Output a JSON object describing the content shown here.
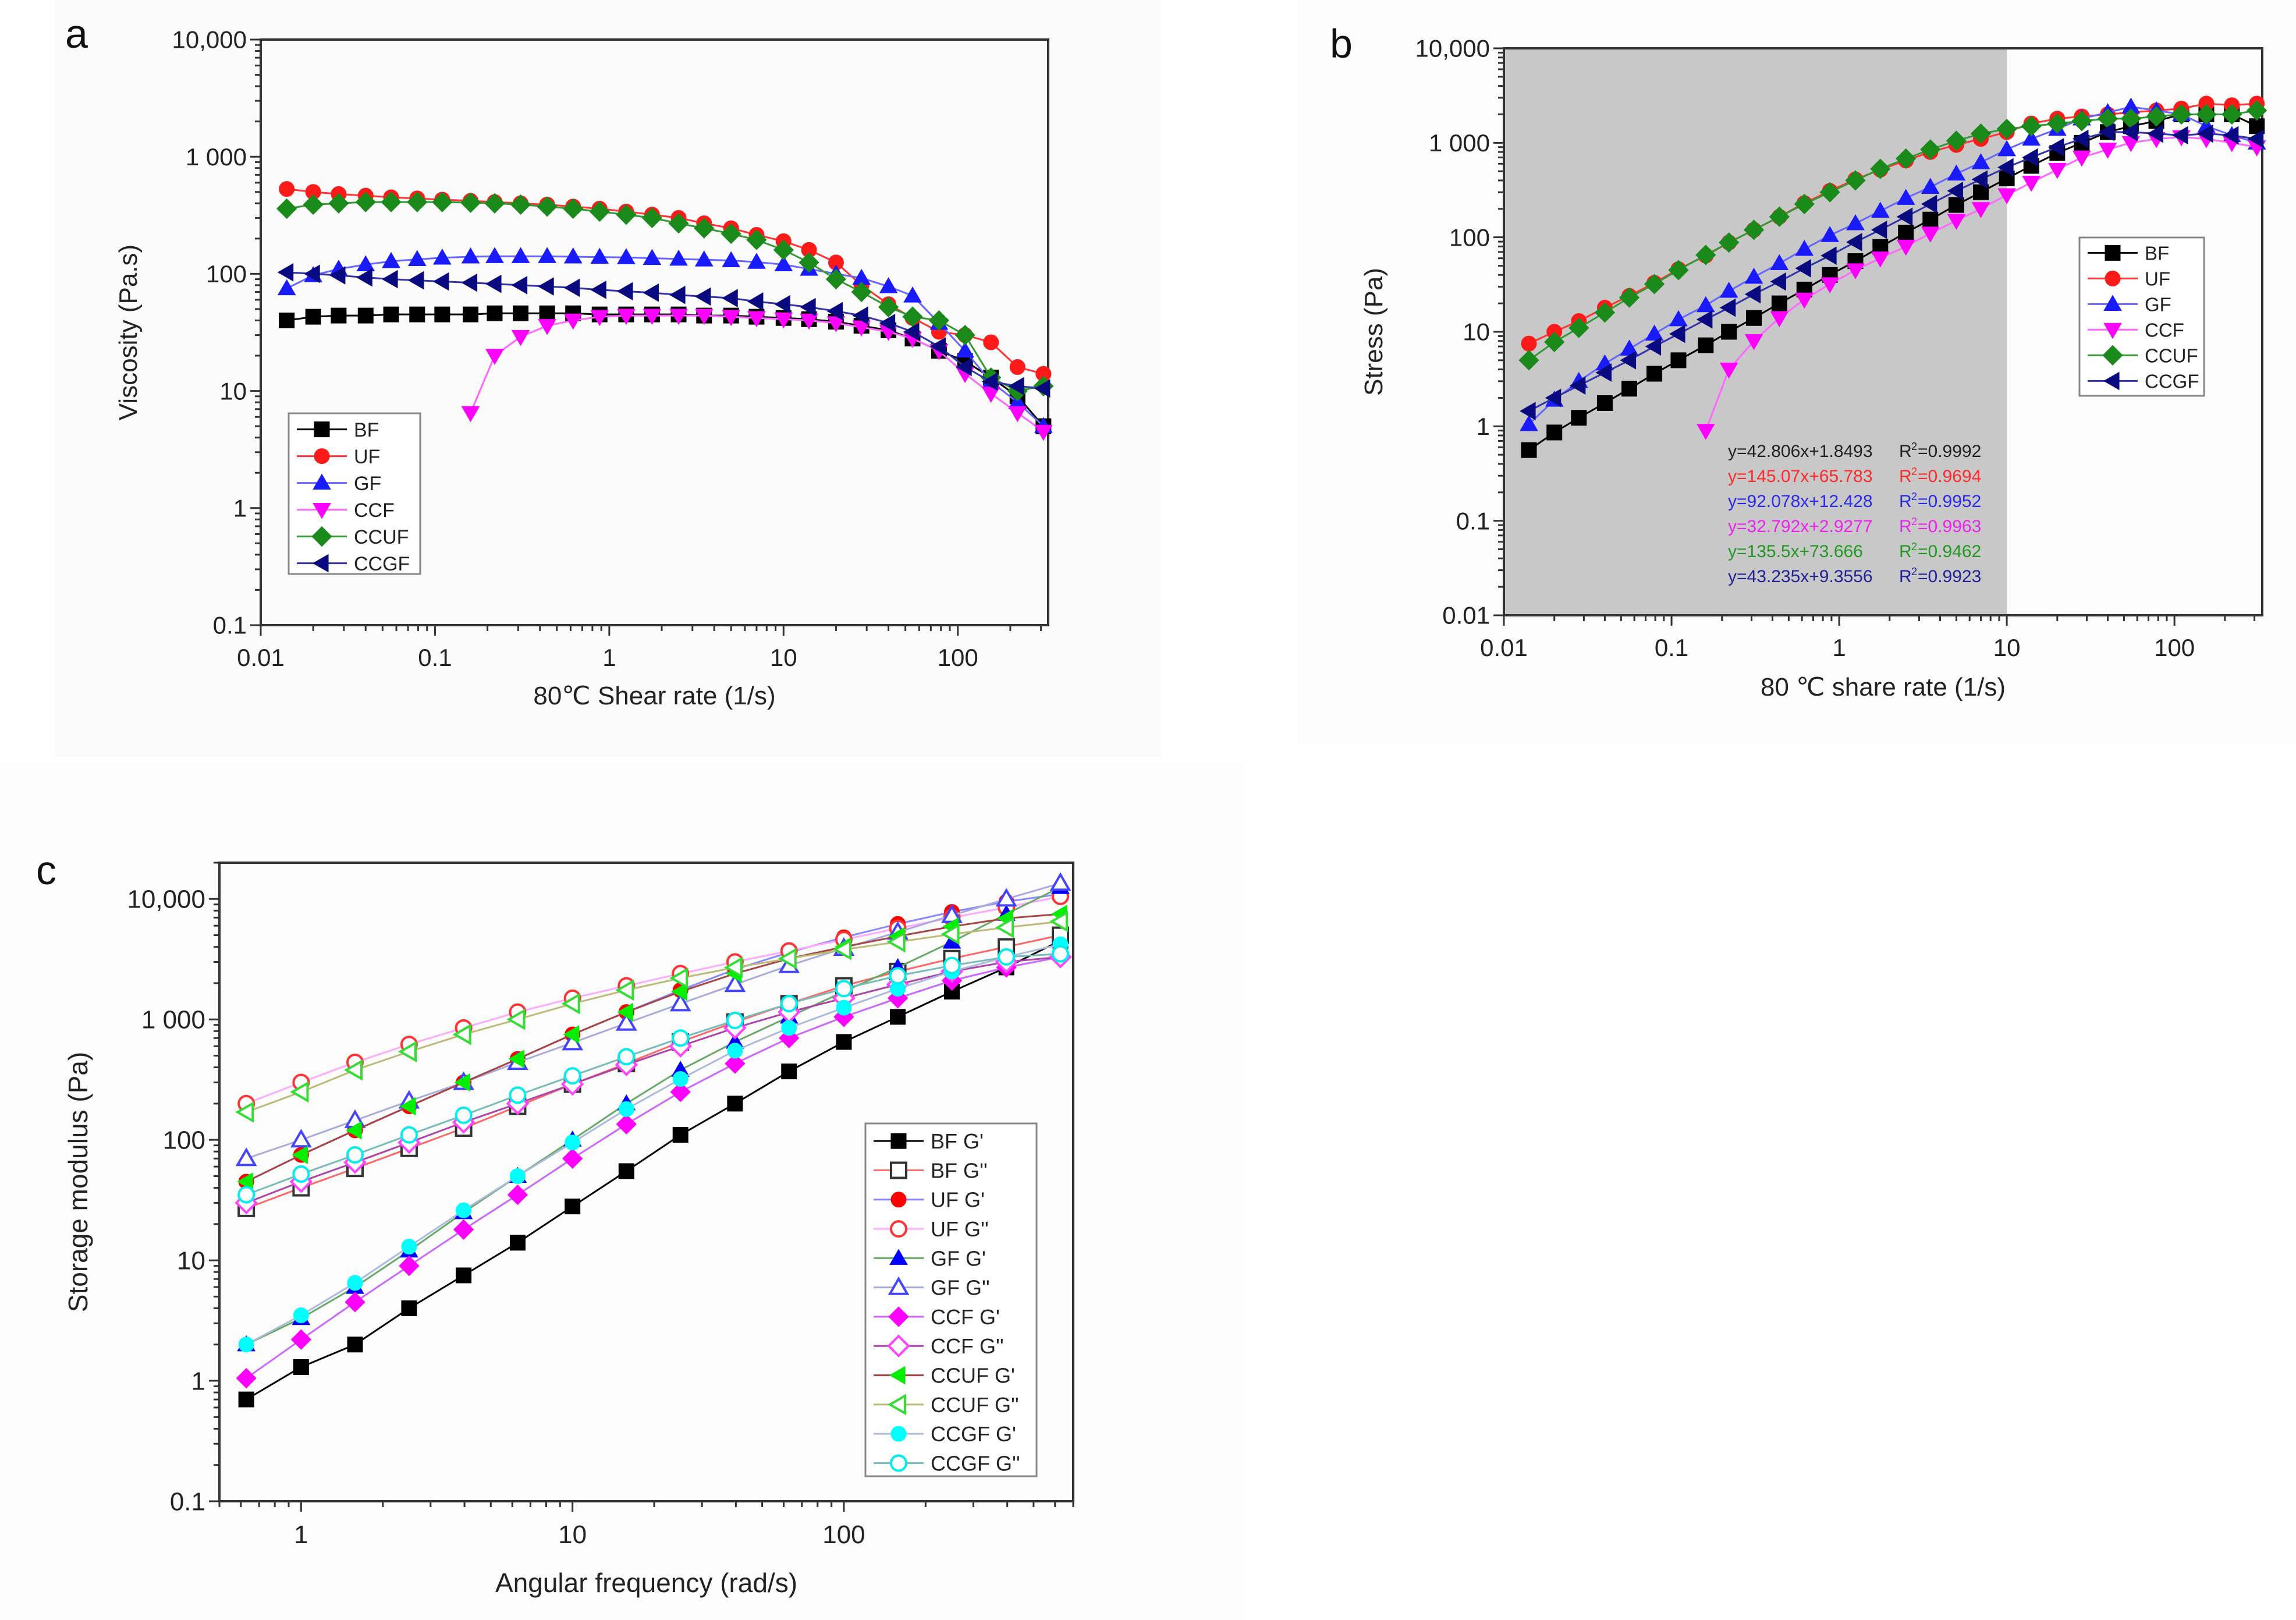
{
  "chart_data": [
    {
      "panel_label": "a",
      "type": "line",
      "title": "",
      "xlabel": "80℃ Shear rate (1/s)",
      "ylabel": "Viscosity (Pa.s)",
      "xscale": "log",
      "yscale": "log",
      "xlim": [
        0.01,
        330
      ],
      "ylim": [
        0.1,
        10000
      ],
      "xticks": [
        0.01,
        0.1,
        1,
        10,
        100
      ],
      "xtick_labels": [
        "0.01",
        "0.1",
        "1",
        "10",
        "100"
      ],
      "yticks": [
        0.1,
        1,
        10,
        100,
        1000,
        10000
      ],
      "ytick_labels": [
        "0.1",
        "1",
        "10",
        "100",
        "1 000",
        "10,000"
      ],
      "legend_position": "lower-left",
      "x": [
        0.0141,
        0.02,
        0.028,
        0.04,
        0.056,
        0.079,
        0.11,
        0.16,
        0.22,
        0.31,
        0.44,
        0.62,
        0.88,
        1.25,
        1.76,
        2.5,
        3.5,
        5,
        7,
        10,
        14,
        20,
        28,
        40,
        55,
        78,
        110,
        155,
        220,
        310
      ],
      "series": [
        {
          "name": "BF",
          "color": "#000000",
          "line_color": "#000000",
          "marker": "square",
          "filled": true,
          "values": [
            40,
            43,
            44,
            44,
            45,
            45,
            45,
            45,
            46,
            46,
            46,
            46,
            45,
            45,
            45,
            45,
            44,
            44,
            43,
            42,
            41,
            39,
            36,
            33,
            28,
            22,
            18,
            13,
            9,
            5
          ]
        },
        {
          "name": "UF",
          "color": "#ff1a1a",
          "line_color": "#ff3333",
          "marker": "circle",
          "filled": true,
          "values": [
            530,
            500,
            480,
            465,
            450,
            440,
            430,
            420,
            410,
            400,
            390,
            375,
            360,
            340,
            320,
            300,
            270,
            245,
            215,
            190,
            160,
            125,
            80,
            55,
            42,
            32,
            30,
            26,
            16,
            14
          ]
        },
        {
          "name": "GF",
          "color": "#1a1aff",
          "line_color": "#6666ff",
          "marker": "triangle-up",
          "filled": true,
          "values": [
            75,
            97,
            110,
            120,
            128,
            133,
            137,
            140,
            141,
            141,
            141,
            140,
            139,
            138,
            136,
            134,
            132,
            130,
            126,
            120,
            110,
            100,
            92,
            78,
            65,
            38,
            22,
            12,
            8,
            5
          ]
        },
        {
          "name": "CCF",
          "color": "#ff00ff",
          "line_color": "#ff66ff",
          "marker": "triangle-down",
          "filled": true,
          "values": [
            null,
            null,
            null,
            null,
            null,
            null,
            null,
            6.5,
            20,
            29,
            36,
            40,
            43,
            44,
            44,
            44,
            44,
            43,
            42,
            41,
            40,
            38,
            35,
            32,
            28,
            22,
            14,
            9.5,
            6.5,
            4.5
          ]
        },
        {
          "name": "CCUF",
          "color": "#1a8a1a",
          "line_color": "#339933",
          "marker": "diamond",
          "filled": true,
          "values": [
            360,
            390,
            400,
            410,
            410,
            410,
            410,
            405,
            400,
            390,
            375,
            360,
            340,
            320,
            300,
            270,
            245,
            220,
            195,
            160,
            125,
            90,
            70,
            52,
            43,
            40,
            30,
            13,
            10,
            11
          ]
        },
        {
          "name": "CCGF",
          "color": "#0a0a80",
          "line_color": "#3333aa",
          "marker": "triangle-left",
          "filled": true,
          "values": [
            103,
            100,
            97,
            93,
            90,
            88,
            86,
            84,
            82,
            80,
            78,
            76,
            73,
            71,
            69,
            66,
            64,
            62,
            58,
            55,
            52,
            48,
            44,
            38,
            32,
            24,
            16,
            12,
            11,
            10.5
          ]
        }
      ]
    },
    {
      "panel_label": "b",
      "type": "line",
      "title": "",
      "xlabel": "80 ℃ share rate (1/s)",
      "ylabel": "Stress (Pa)",
      "xscale": "log",
      "yscale": "log",
      "xlim": [
        0.01,
        334
      ],
      "ylim": [
        0.01,
        10000
      ],
      "xticks": [
        0.01,
        0.1,
        1,
        10,
        100
      ],
      "xtick_labels": [
        "0.01",
        "0.1",
        "1",
        "10",
        "100"
      ],
      "yticks": [
        0.01,
        0.1,
        1,
        10,
        100,
        1000,
        10000
      ],
      "ytick_labels": [
        "0.01",
        "0.1",
        "1",
        "10",
        "100",
        "1 000",
        "10,000"
      ],
      "shaded_region_x": [
        0.01,
        10
      ],
      "shaded_color": "#c8c8c8",
      "legend_position": "right",
      "x": [
        0.0141,
        0.02,
        0.028,
        0.04,
        0.056,
        0.079,
        0.11,
        0.16,
        0.22,
        0.31,
        0.44,
        0.62,
        0.88,
        1.25,
        1.76,
        2.5,
        3.5,
        5,
        7,
        10,
        14,
        20,
        28,
        40,
        55,
        78,
        110,
        155,
        220,
        310
      ],
      "series": [
        {
          "name": "BF",
          "color": "#000000",
          "line_color": "#000000",
          "marker": "square",
          "filled": true,
          "values": [
            0.56,
            0.86,
            1.23,
            1.76,
            2.5,
            3.6,
            5,
            7.2,
            10,
            14,
            20,
            28,
            40,
            56,
            79,
            112,
            154,
            220,
            300,
            420,
            570,
            780,
            1000,
            1300,
            1500,
            1700,
            2000,
            2000,
            2000,
            1500
          ]
        },
        {
          "name": "UF",
          "color": "#ff1a1a",
          "line_color": "#ff3333",
          "marker": "circle",
          "filled": true,
          "values": [
            7.5,
            10,
            13,
            18,
            24,
            33,
            46,
            64,
            88,
            120,
            165,
            230,
            310,
            410,
            520,
            650,
            800,
            950,
            1100,
            1300,
            1600,
            1800,
            1900,
            2000,
            2100,
            2200,
            2300,
            2600,
            2500,
            2600
          ]
        },
        {
          "name": "GF",
          "color": "#1a1aff",
          "line_color": "#6666ff",
          "marker": "triangle-up",
          "filled": true,
          "values": [
            1.05,
            1.9,
            3,
            4.6,
            6.6,
            9.5,
            13.5,
            19,
            27,
            38,
            53,
            75,
            105,
            140,
            190,
            260,
            340,
            470,
            620,
            850,
            1100,
            1400,
            1800,
            2100,
            2400,
            2200,
            2000,
            1500,
            1200,
            1000
          ]
        },
        {
          "name": "CCF",
          "color": "#ff00ff",
          "line_color": "#ff66ff",
          "marker": "triangle-down",
          "filled": true,
          "values": [
            null,
            null,
            null,
            null,
            null,
            null,
            null,
            0.9,
            4,
            8,
            14,
            22,
            32,
            45,
            60,
            80,
            110,
            150,
            200,
            280,
            380,
            520,
            700,
            850,
            1000,
            1100,
            1150,
            1100,
            1000,
            900
          ]
        },
        {
          "name": "CCUF",
          "color": "#1a8a1a",
          "line_color": "#339933",
          "marker": "diamond",
          "filled": true,
          "values": [
            5,
            7.8,
            11,
            16,
            23,
            32,
            45,
            65,
            88,
            120,
            165,
            225,
            300,
            400,
            530,
            680,
            850,
            1050,
            1250,
            1400,
            1500,
            1600,
            1700,
            1800,
            1800,
            1900,
            2000,
            2000,
            2000,
            2200
          ]
        },
        {
          "name": "CCGF",
          "color": "#0a0a80",
          "line_color": "#3333aa",
          "marker": "triangle-left",
          "filled": true,
          "values": [
            1.45,
            2,
            2.7,
            3.7,
            5,
            7,
            9.5,
            13.5,
            18,
            25,
            34,
            47,
            64,
            89,
            120,
            165,
            225,
            310,
            410,
            550,
            700,
            900,
            1100,
            1300,
            1300,
            1250,
            1200,
            1250,
            1200,
            1100
          ]
        }
      ],
      "annotations": [
        {
          "equation": "y=42.806x+1.8493",
          "r2_label": "R",
          "r2_sup": "2",
          "r2_value": "=0.9992",
          "color": "#222222"
        },
        {
          "equation": "y=145.07x+65.783",
          "r2_label": "R",
          "r2_sup": "2",
          "r2_value": "=0.9694",
          "color": "#ff2a2a"
        },
        {
          "equation": "y=92.078x+12.428",
          "r2_label": "R",
          "r2_sup": "2",
          "r2_value": "=0.9952",
          "color": "#2a2aee"
        },
        {
          "equation": "y=32.792x+2.9277",
          "r2_label": "R",
          "r2_sup": "2",
          "r2_value": "=0.9963",
          "color": "#ee22ee"
        },
        {
          "equation": "y=135.5x+73.666",
          "r2_label": "R",
          "r2_sup": "2",
          "r2_value": "=0.9462",
          "color": "#229922"
        },
        {
          "equation": "y=43.235x+9.3556",
          "r2_label": "R",
          "r2_sup": "2",
          "r2_value": "=0.9923",
          "color": "#222299"
        }
      ]
    },
    {
      "panel_label": "c",
      "type": "line",
      "title": "",
      "xlabel": "Angular frequency (rad/s)",
      "ylabel": "Storage modulus (Pa)",
      "xscale": "log",
      "yscale": "log",
      "xlim": [
        0.5,
        700
      ],
      "ylim": [
        0.1,
        20000
      ],
      "xticks": [
        1,
        10,
        100
      ],
      "xtick_labels": [
        "1",
        "10",
        "100"
      ],
      "yticks": [
        0.1,
        1,
        10,
        100,
        1000,
        10000
      ],
      "ytick_labels": [
        "0.1",
        "1",
        "10",
        "100",
        "1 000",
        "10,000"
      ],
      "legend_position": "lower-right",
      "x": [
        0.628,
        1,
        1.58,
        2.5,
        3.97,
        6.28,
        10,
        15.8,
        25,
        39.7,
        62.8,
        100,
        158,
        250,
        397,
        628
      ],
      "series": [
        {
          "name": "BF G'",
          "color": "#000000",
          "line_color": "#000000",
          "marker": "square",
          "filled": true,
          "values": [
            0.7,
            1.3,
            2,
            4,
            7.5,
            14,
            28,
            55,
            110,
            200,
            370,
            650,
            1050,
            1700,
            2700,
            4500
          ]
        },
        {
          "name": "BF G''",
          "color": "#333333",
          "line_color": "#ff6666",
          "marker": "square",
          "filled": false,
          "values": [
            27,
            40,
            58,
            85,
            125,
            190,
            290,
            430,
            650,
            950,
            1350,
            1900,
            2500,
            3200,
            4000,
            5000
          ]
        },
        {
          "name": "UF G'",
          "color": "#ff0000",
          "line_color": "#8888ff",
          "marker": "circle",
          "filled": true,
          "values": [
            45,
            75,
            120,
            190,
            300,
            470,
            750,
            1150,
            1750,
            2600,
            3600,
            4800,
            6200,
            7800,
            9500,
            11000
          ]
        },
        {
          "name": "UF G''",
          "color": "#ff3333",
          "line_color": "#ffaaff",
          "marker": "circle",
          "filled": false,
          "values": [
            200,
            300,
            440,
            620,
            850,
            1150,
            1500,
            1900,
            2400,
            3000,
            3700,
            4600,
            5700,
            7000,
            8500,
            10500
          ]
        },
        {
          "name": "GF G'",
          "color": "#0000ff",
          "line_color": "#66aa66",
          "marker": "triangle-up",
          "filled": true,
          "values": [
            2,
            3.3,
            6,
            12,
            25,
            50,
            100,
            200,
            380,
            650,
            1050,
            1700,
            2700,
            4400,
            7500,
            12500
          ]
        },
        {
          "name": "GF G''",
          "color": "#4444ff",
          "line_color": "#aaaadd",
          "marker": "triangle-up",
          "filled": false,
          "values": [
            70,
            100,
            145,
            210,
            300,
            440,
            640,
            930,
            1350,
            1950,
            2800,
            3900,
            5300,
            7300,
            10000,
            13500
          ]
        },
        {
          "name": "CCF G'",
          "color": "#ff00ff",
          "line_color": "#cc66ff",
          "marker": "diamond",
          "filled": true,
          "values": [
            1.05,
            2.2,
            4.5,
            9,
            18,
            35,
            70,
            135,
            250,
            430,
            700,
            1050,
            1500,
            2100,
            2700,
            3300
          ]
        },
        {
          "name": "CCF G''",
          "color": "#ff44ff",
          "line_color": "#aa44aa",
          "marker": "diamond",
          "filled": false,
          "values": [
            30,
            45,
            65,
            95,
            140,
            200,
            290,
            420,
            600,
            850,
            1150,
            1500,
            1950,
            2500,
            3000,
            3300
          ]
        },
        {
          "name": "CCUF G'",
          "color": "#00ee00",
          "line_color": "#aa4444",
          "marker": "triangle-left",
          "filled": true,
          "values": [
            45,
            75,
            120,
            190,
            300,
            470,
            750,
            1150,
            1700,
            2400,
            3200,
            4000,
            4900,
            5900,
            6900,
            7500
          ]
        },
        {
          "name": "CCUF G''",
          "color": "#33dd33",
          "line_color": "#bbbb77",
          "marker": "triangle-left",
          "filled": false,
          "values": [
            170,
            250,
            380,
            540,
            750,
            1000,
            1350,
            1750,
            2200,
            2700,
            3200,
            3800,
            4400,
            5100,
            5800,
            6500
          ]
        },
        {
          "name": "CCGF G'",
          "color": "#00ffff",
          "line_color": "#aabbdd",
          "marker": "circle",
          "filled": true,
          "values": [
            2,
            3.5,
            6.5,
            13,
            26,
            50,
            95,
            180,
            320,
            550,
            850,
            1250,
            1800,
            2500,
            3300,
            4200
          ]
        },
        {
          "name": "CCGF G''",
          "color": "#00eeee",
          "line_color": "#77bbbb",
          "marker": "circle",
          "filled": false,
          "values": [
            35,
            52,
            75,
            110,
            160,
            235,
            340,
            490,
            700,
            980,
            1350,
            1800,
            2300,
            2800,
            3300,
            3500
          ]
        }
      ]
    }
  ]
}
